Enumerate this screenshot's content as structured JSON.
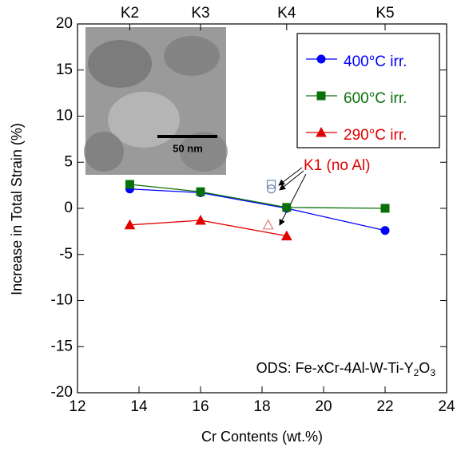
{
  "chart_data": {
    "type": "line",
    "xlabel": "Cr Contents (wt.%)",
    "ylabel": "Increase in Total Strain (%)",
    "xlim": [
      12,
      24
    ],
    "xticks": [
      12,
      14,
      16,
      18,
      20,
      22,
      24
    ],
    "ylim": [
      -20,
      20
    ],
    "yticks": [
      -20,
      -15,
      -10,
      -5,
      0,
      5,
      10,
      15,
      20
    ],
    "x2ticks": [
      {
        "value": 13.7,
        "label": "K2"
      },
      {
        "value": 16,
        "label": "K3"
      },
      {
        "value": 18.8,
        "label": "K4"
      },
      {
        "value": 22,
        "label": "K5"
      }
    ],
    "legend": "upper right",
    "series": [
      {
        "name": "400°C irr.",
        "color": "#0000ff",
        "marker": "circle",
        "x": [
          13.7,
          16,
          18.8,
          22
        ],
        "values": [
          2.1,
          1.7,
          0,
          -2.4
        ]
      },
      {
        "name": "600°C irr.",
        "color": "#0a700a",
        "marker": "square",
        "x": [
          13.7,
          16,
          18.8,
          22
        ],
        "values": [
          2.6,
          1.8,
          0.1,
          0
        ]
      },
      {
        "name": "290°C irr.",
        "color": "#e00000",
        "marker": "triangle",
        "x": [
          13.7,
          16,
          18.8
        ],
        "values": [
          -1.8,
          -1.3,
          -3
        ]
      }
    ],
    "open_points": {
      "label": "K1 (no Al)",
      "color": "#e00000",
      "x": [
        18.3,
        18.3,
        18.2
      ],
      "values": [
        2.6,
        2.1,
        -1.8
      ],
      "markers": [
        "square",
        "circle",
        "triangle"
      ],
      "colors": [
        "#6a8ab0",
        "#6a8ab0",
        "#e08080"
      ]
    },
    "annotation": [
      "ODS: Fe-xCr-4Al-W-Ti-Y",
      "2",
      "O",
      "3"
    ],
    "inset_scale": "50 nm"
  }
}
